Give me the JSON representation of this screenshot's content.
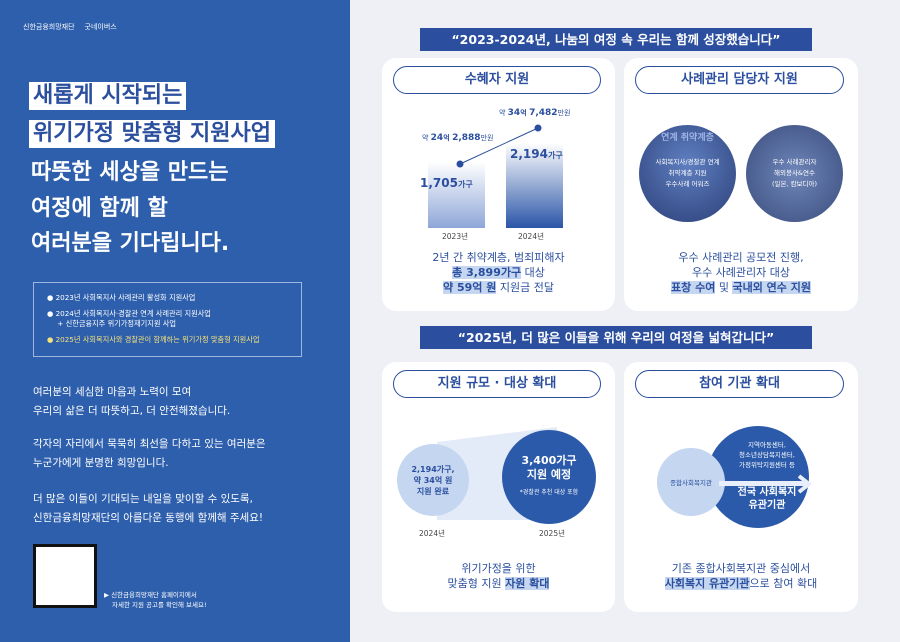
{
  "left": {
    "logo1": "신한금융희망재단",
    "logo2": "굿네이버스",
    "headline": [
      "새롭게 시작되는",
      "위기가정 맞춤형 지원사업"
    ],
    "subhead": [
      "따뜻한 세상을 만드는",
      "여정에 함께 할",
      "여러분을 기다립니다."
    ],
    "history": [
      "2023년 사회복지사 사례관리 활성화 지원사업",
      "2024년 사회복지사·경찰관 연계 사례관리 지원사업",
      "+ 신한금융지주 위기가정재기지원 사업",
      "2025년 사회복지사와 경찰관이 함께하는 위기가정 맞춤형 지원사업"
    ],
    "paragraphs": [
      [
        "여러분의 세심한 마음과 노력이 모여",
        "우리의 삶은 더 따뜻하고, 더 안전해졌습니다."
      ],
      [
        "각자의 자리에서 묵묵히 최선을 다하고 있는 여러분은",
        "누군가에게 분명한 희망입니다."
      ],
      [
        "더 많은 이들이 기대되는 내일을 맞이할 수 있도록,",
        "신한금융희망재단의 아름다운 동행에 함께해 주세요!"
      ]
    ],
    "qr_note": [
      "▶ 신한금융희망재단 홈페이지에서",
      "자세한 지원 공고를 확인해 보세요!"
    ]
  },
  "banner1": "“2023-2024년, 나눔의 여정 속 우리는 함께 성장했습니다”",
  "banner2": "“2025년, 더 많은 이들을 위해 우리의 여정을 넓혀갑니다”",
  "card1": {
    "title": "수혜자 지원",
    "chart_data": {
      "type": "bar",
      "categories": [
        "2023년",
        "2024년"
      ],
      "values": [
        1705,
        2194
      ],
      "value_labels": [
        "1,705",
        "2,194"
      ],
      "unit": "가구",
      "line_labels": [
        {
          "pre": "약 ",
          "a": "24",
          "b": "억 ",
          "c": "2,888",
          "d": "만원"
        },
        {
          "pre": "약 ",
          "a": "34",
          "b": "억 ",
          "c": "7,482",
          "d": "만원"
        }
      ]
    },
    "cap1": "2년 간 취약계층, 범죄피해자",
    "cap2a": "총 3,899가구",
    "cap2b": " 대상",
    "cap3a": "약 59억 원",
    "cap3b": " 지원금 전달"
  },
  "card2": {
    "title": "사례관리 담당자 지원",
    "photo1": [
      "사회복지사/경찰관 연계",
      "취약계층 지원",
      "우수사례 어워즈"
    ],
    "photo1_bg": "연계 취약계층",
    "photo2": [
      "우수 사례관리자",
      "해외봉사&연수",
      "(일본, 캄보디아)"
    ],
    "cap1": "우수 사례관리 공모전 진행,",
    "cap2": "우수 사례관리자 대상",
    "cap3a": "표창 수여",
    "cap3b": " 및 ",
    "cap3c": "국내외 연수 지원"
  },
  "card3": {
    "title": "지원 규모 · 대상 확대",
    "small": [
      "2,194가구,",
      "약 34억 원",
      "지원 완료"
    ],
    "big": [
      "3,400가구",
      "지원 예정"
    ],
    "note": "*경찰관 추천 대상 포함",
    "year1": "2024년",
    "year2": "2025년",
    "cap1": "위기가정을 위한",
    "cap2a": "맞춤형 지원 ",
    "cap2b": "자원 확대"
  },
  "card4": {
    "title": "참여 기관 확대",
    "small": "종합사회복지관",
    "big_top": [
      "지역아동센터,",
      "청소년상담복지센터,",
      "가정위탁지원센터 등"
    ],
    "big_bottom": [
      "전국 사회복지",
      "유관기관"
    ],
    "cap1": "기존 종합사회복지관 중심에서",
    "cap2a": "사회복지 유관기관",
    "cap2b": "으로 참여 확대"
  },
  "colors": {
    "primary": "#2b4f9e",
    "left_bg": "#2e5fac",
    "light": "#c5d6f1",
    "highlight_yellow": "#f5e27a"
  }
}
